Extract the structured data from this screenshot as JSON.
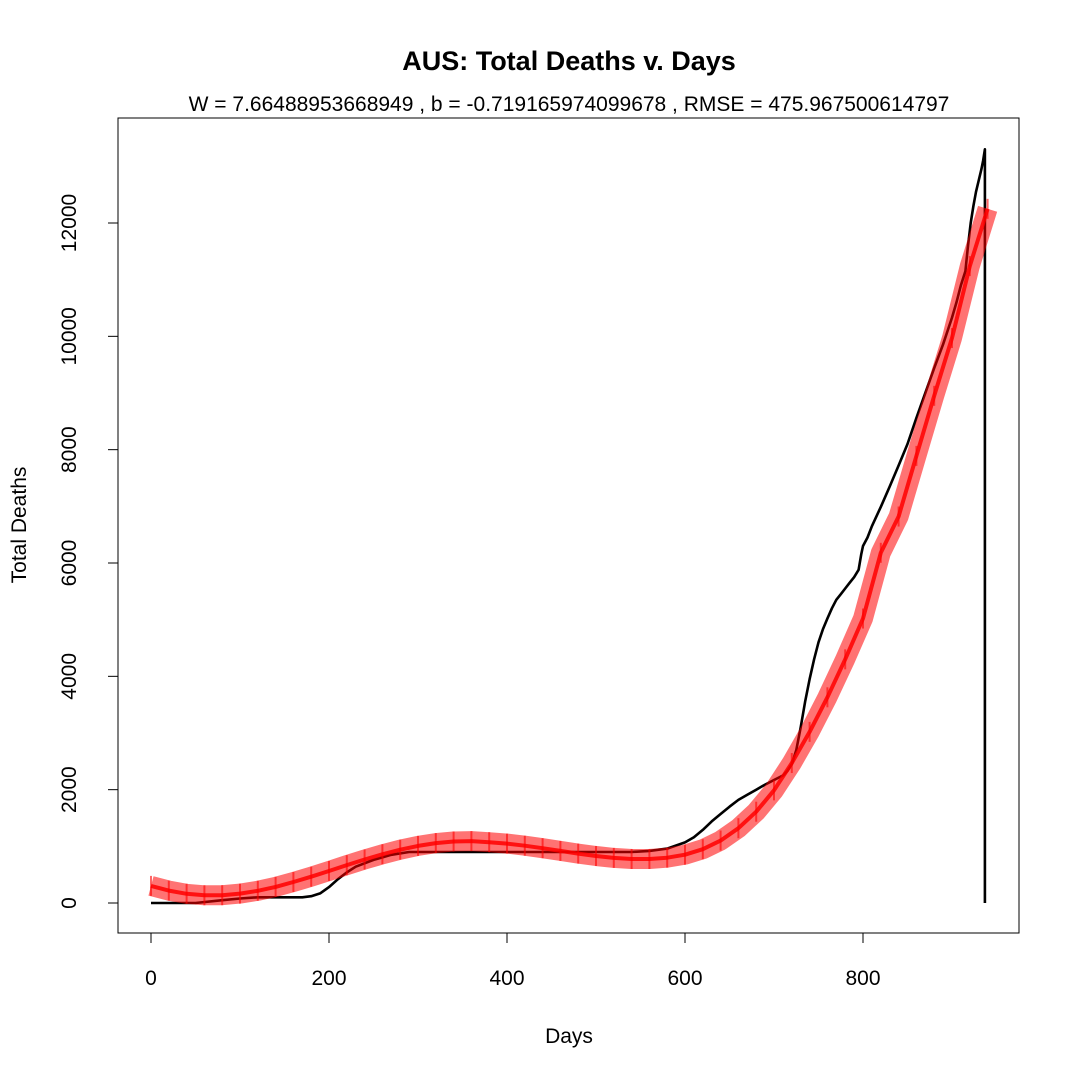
{
  "chart_data": {
    "type": "line",
    "title": "AUS: Total Deaths v. Days",
    "subtitle": "W = 7.66488953668949 , b = -0.719165974099678 , RMSE = 475.967500614797",
    "xlabel": "Days",
    "ylabel": "Total Deaths",
    "xlim": [
      0,
      940
    ],
    "ylim": [
      0,
      13300
    ],
    "x_ticks": [
      0,
      200,
      400,
      600,
      800
    ],
    "y_ticks": [
      0,
      2000,
      4000,
      6000,
      8000,
      10000,
      12000
    ],
    "grid": false,
    "legend": "none",
    "series": [
      {
        "color": "#000000",
        "style": "line",
        "points": [
          [
            0,
            0
          ],
          [
            50,
            0
          ],
          [
            80,
            50
          ],
          [
            100,
            80
          ],
          [
            120,
            100
          ],
          [
            150,
            100
          ],
          [
            170,
            100
          ],
          [
            180,
            120
          ],
          [
            190,
            170
          ],
          [
            200,
            280
          ],
          [
            210,
            420
          ],
          [
            220,
            540
          ],
          [
            230,
            640
          ],
          [
            250,
            760
          ],
          [
            270,
            850
          ],
          [
            290,
            900
          ],
          [
            330,
            900
          ],
          [
            400,
            900
          ],
          [
            480,
            900
          ],
          [
            540,
            900
          ],
          [
            560,
            920
          ],
          [
            580,
            960
          ],
          [
            600,
            1070
          ],
          [
            610,
            1160
          ],
          [
            620,
            1290
          ],
          [
            630,
            1440
          ],
          [
            640,
            1570
          ],
          [
            650,
            1700
          ],
          [
            660,
            1820
          ],
          [
            670,
            1910
          ],
          [
            680,
            2000
          ],
          [
            690,
            2090
          ],
          [
            700,
            2170
          ],
          [
            710,
            2250
          ],
          [
            715,
            2330
          ],
          [
            720,
            2450
          ],
          [
            725,
            2700
          ],
          [
            730,
            3100
          ],
          [
            735,
            3550
          ],
          [
            740,
            3950
          ],
          [
            745,
            4300
          ],
          [
            750,
            4600
          ],
          [
            755,
            4830
          ],
          [
            760,
            5020
          ],
          [
            765,
            5200
          ],
          [
            770,
            5350
          ],
          [
            775,
            5450
          ],
          [
            780,
            5550
          ],
          [
            785,
            5650
          ],
          [
            790,
            5750
          ],
          [
            795,
            5880
          ],
          [
            798,
            6150
          ],
          [
            800,
            6300
          ],
          [
            805,
            6450
          ],
          [
            810,
            6650
          ],
          [
            820,
            6990
          ],
          [
            830,
            7350
          ],
          [
            840,
            7720
          ],
          [
            850,
            8100
          ],
          [
            860,
            8560
          ],
          [
            870,
            9000
          ],
          [
            880,
            9440
          ],
          [
            890,
            9860
          ],
          [
            900,
            10330
          ],
          [
            905,
            10600
          ],
          [
            910,
            10900
          ],
          [
            915,
            11150
          ],
          [
            918,
            11600
          ],
          [
            921,
            12000
          ],
          [
            924,
            12300
          ],
          [
            927,
            12550
          ],
          [
            930,
            12750
          ],
          [
            933,
            12950
          ],
          [
            935,
            13100
          ],
          [
            937,
            13300
          ],
          [
            937,
            0
          ]
        ]
      },
      {
        "color": "#ff0000",
        "style": "thick-fit-line",
        "points": [
          [
            0,
            302
          ],
          [
            20,
            218
          ],
          [
            40,
            163
          ],
          [
            60,
            136
          ],
          [
            80,
            138
          ],
          [
            100,
            165
          ],
          [
            120,
            216
          ],
          [
            140,
            285
          ],
          [
            160,
            370
          ],
          [
            180,
            464
          ],
          [
            200,
            565
          ],
          [
            220,
            668
          ],
          [
            240,
            768
          ],
          [
            260,
            860
          ],
          [
            280,
            941
          ],
          [
            300,
            1008
          ],
          [
            320,
            1057
          ],
          [
            340,
            1086
          ],
          [
            360,
            1092
          ],
          [
            380,
            1073
          ],
          [
            400,
            1048
          ],
          [
            420,
            1011
          ],
          [
            440,
            967
          ],
          [
            460,
            919
          ],
          [
            480,
            872
          ],
          [
            500,
            830
          ],
          [
            520,
            796
          ],
          [
            540,
            777
          ],
          [
            560,
            777
          ],
          [
            580,
            800
          ],
          [
            600,
            852
          ],
          [
            620,
            949
          ],
          [
            640,
            1102
          ],
          [
            660,
            1320
          ],
          [
            680,
            1611
          ],
          [
            700,
            1988
          ],
          [
            720,
            2470
          ],
          [
            740,
            3020
          ],
          [
            760,
            3630
          ],
          [
            780,
            4300
          ],
          [
            800,
            5020
          ],
          [
            820,
            6180
          ],
          [
            840,
            6820
          ],
          [
            860,
            7890
          ],
          [
            880,
            8950
          ],
          [
            900,
            9970
          ],
          [
            920,
            11240
          ],
          [
            940,
            12250
          ]
        ]
      }
    ]
  }
}
